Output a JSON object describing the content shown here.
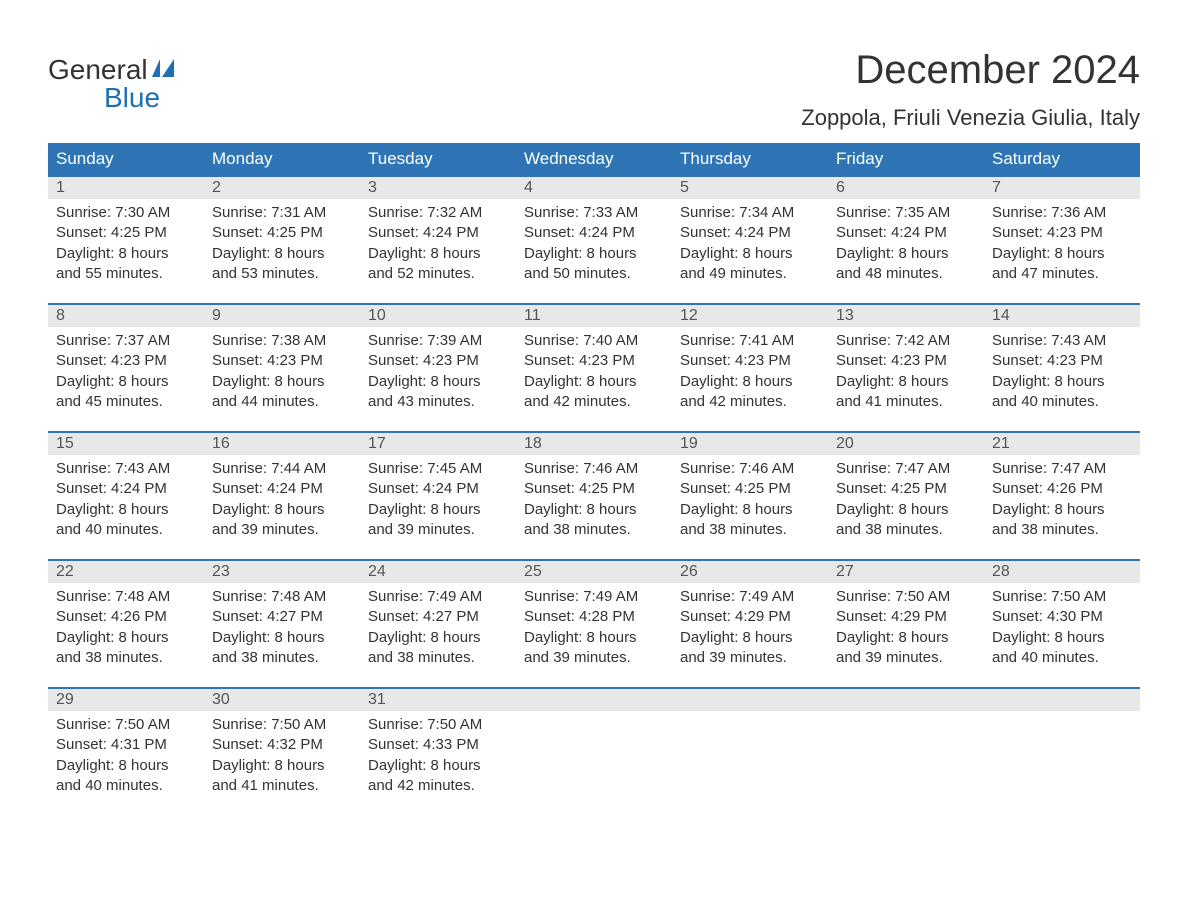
{
  "logo": {
    "text_general": "General",
    "text_blue": "Blue",
    "flag_color": "#1f6fb2"
  },
  "title": "December 2024",
  "location": "Zoppola, Friuli Venezia Giulia, Italy",
  "colors": {
    "header_bg": "#2f75b5",
    "header_text": "#ffffff",
    "daynum_bg": "#e8e8e8",
    "daynum_border": "#2f75b5",
    "body_text": "#333333",
    "page_bg": "#ffffff"
  },
  "fonts": {
    "title_size_pt": 30,
    "location_size_pt": 17,
    "header_size_pt": 13,
    "cell_size_pt": 11
  },
  "day_headers": [
    "Sunday",
    "Monday",
    "Tuesday",
    "Wednesday",
    "Thursday",
    "Friday",
    "Saturday"
  ],
  "weeks": [
    [
      {
        "n": "1",
        "sr": "Sunrise: 7:30 AM",
        "ss": "Sunset: 4:25 PM",
        "d1": "Daylight: 8 hours",
        "d2": "and 55 minutes."
      },
      {
        "n": "2",
        "sr": "Sunrise: 7:31 AM",
        "ss": "Sunset: 4:25 PM",
        "d1": "Daylight: 8 hours",
        "d2": "and 53 minutes."
      },
      {
        "n": "3",
        "sr": "Sunrise: 7:32 AM",
        "ss": "Sunset: 4:24 PM",
        "d1": "Daylight: 8 hours",
        "d2": "and 52 minutes."
      },
      {
        "n": "4",
        "sr": "Sunrise: 7:33 AM",
        "ss": "Sunset: 4:24 PM",
        "d1": "Daylight: 8 hours",
        "d2": "and 50 minutes."
      },
      {
        "n": "5",
        "sr": "Sunrise: 7:34 AM",
        "ss": "Sunset: 4:24 PM",
        "d1": "Daylight: 8 hours",
        "d2": "and 49 minutes."
      },
      {
        "n": "6",
        "sr": "Sunrise: 7:35 AM",
        "ss": "Sunset: 4:24 PM",
        "d1": "Daylight: 8 hours",
        "d2": "and 48 minutes."
      },
      {
        "n": "7",
        "sr": "Sunrise: 7:36 AM",
        "ss": "Sunset: 4:23 PM",
        "d1": "Daylight: 8 hours",
        "d2": "and 47 minutes."
      }
    ],
    [
      {
        "n": "8",
        "sr": "Sunrise: 7:37 AM",
        "ss": "Sunset: 4:23 PM",
        "d1": "Daylight: 8 hours",
        "d2": "and 45 minutes."
      },
      {
        "n": "9",
        "sr": "Sunrise: 7:38 AM",
        "ss": "Sunset: 4:23 PM",
        "d1": "Daylight: 8 hours",
        "d2": "and 44 minutes."
      },
      {
        "n": "10",
        "sr": "Sunrise: 7:39 AM",
        "ss": "Sunset: 4:23 PM",
        "d1": "Daylight: 8 hours",
        "d2": "and 43 minutes."
      },
      {
        "n": "11",
        "sr": "Sunrise: 7:40 AM",
        "ss": "Sunset: 4:23 PM",
        "d1": "Daylight: 8 hours",
        "d2": "and 42 minutes."
      },
      {
        "n": "12",
        "sr": "Sunrise: 7:41 AM",
        "ss": "Sunset: 4:23 PM",
        "d1": "Daylight: 8 hours",
        "d2": "and 42 minutes."
      },
      {
        "n": "13",
        "sr": "Sunrise: 7:42 AM",
        "ss": "Sunset: 4:23 PM",
        "d1": "Daylight: 8 hours",
        "d2": "and 41 minutes."
      },
      {
        "n": "14",
        "sr": "Sunrise: 7:43 AM",
        "ss": "Sunset: 4:23 PM",
        "d1": "Daylight: 8 hours",
        "d2": "and 40 minutes."
      }
    ],
    [
      {
        "n": "15",
        "sr": "Sunrise: 7:43 AM",
        "ss": "Sunset: 4:24 PM",
        "d1": "Daylight: 8 hours",
        "d2": "and 40 minutes."
      },
      {
        "n": "16",
        "sr": "Sunrise: 7:44 AM",
        "ss": "Sunset: 4:24 PM",
        "d1": "Daylight: 8 hours",
        "d2": "and 39 minutes."
      },
      {
        "n": "17",
        "sr": "Sunrise: 7:45 AM",
        "ss": "Sunset: 4:24 PM",
        "d1": "Daylight: 8 hours",
        "d2": "and 39 minutes."
      },
      {
        "n": "18",
        "sr": "Sunrise: 7:46 AM",
        "ss": "Sunset: 4:25 PM",
        "d1": "Daylight: 8 hours",
        "d2": "and 38 minutes."
      },
      {
        "n": "19",
        "sr": "Sunrise: 7:46 AM",
        "ss": "Sunset: 4:25 PM",
        "d1": "Daylight: 8 hours",
        "d2": "and 38 minutes."
      },
      {
        "n": "20",
        "sr": "Sunrise: 7:47 AM",
        "ss": "Sunset: 4:25 PM",
        "d1": "Daylight: 8 hours",
        "d2": "and 38 minutes."
      },
      {
        "n": "21",
        "sr": "Sunrise: 7:47 AM",
        "ss": "Sunset: 4:26 PM",
        "d1": "Daylight: 8 hours",
        "d2": "and 38 minutes."
      }
    ],
    [
      {
        "n": "22",
        "sr": "Sunrise: 7:48 AM",
        "ss": "Sunset: 4:26 PM",
        "d1": "Daylight: 8 hours",
        "d2": "and 38 minutes."
      },
      {
        "n": "23",
        "sr": "Sunrise: 7:48 AM",
        "ss": "Sunset: 4:27 PM",
        "d1": "Daylight: 8 hours",
        "d2": "and 38 minutes."
      },
      {
        "n": "24",
        "sr": "Sunrise: 7:49 AM",
        "ss": "Sunset: 4:27 PM",
        "d1": "Daylight: 8 hours",
        "d2": "and 38 minutes."
      },
      {
        "n": "25",
        "sr": "Sunrise: 7:49 AM",
        "ss": "Sunset: 4:28 PM",
        "d1": "Daylight: 8 hours",
        "d2": "and 39 minutes."
      },
      {
        "n": "26",
        "sr": "Sunrise: 7:49 AM",
        "ss": "Sunset: 4:29 PM",
        "d1": "Daylight: 8 hours",
        "d2": "and 39 minutes."
      },
      {
        "n": "27",
        "sr": "Sunrise: 7:50 AM",
        "ss": "Sunset: 4:29 PM",
        "d1": "Daylight: 8 hours",
        "d2": "and 39 minutes."
      },
      {
        "n": "28",
        "sr": "Sunrise: 7:50 AM",
        "ss": "Sunset: 4:30 PM",
        "d1": "Daylight: 8 hours",
        "d2": "and 40 minutes."
      }
    ],
    [
      {
        "n": "29",
        "sr": "Sunrise: 7:50 AM",
        "ss": "Sunset: 4:31 PM",
        "d1": "Daylight: 8 hours",
        "d2": "and 40 minutes."
      },
      {
        "n": "30",
        "sr": "Sunrise: 7:50 AM",
        "ss": "Sunset: 4:32 PM",
        "d1": "Daylight: 8 hours",
        "d2": "and 41 minutes."
      },
      {
        "n": "31",
        "sr": "Sunrise: 7:50 AM",
        "ss": "Sunset: 4:33 PM",
        "d1": "Daylight: 8 hours",
        "d2": "and 42 minutes."
      },
      {
        "n": "",
        "sr": "",
        "ss": "",
        "d1": "",
        "d2": ""
      },
      {
        "n": "",
        "sr": "",
        "ss": "",
        "d1": "",
        "d2": ""
      },
      {
        "n": "",
        "sr": "",
        "ss": "",
        "d1": "",
        "d2": ""
      },
      {
        "n": "",
        "sr": "",
        "ss": "",
        "d1": "",
        "d2": ""
      }
    ]
  ]
}
